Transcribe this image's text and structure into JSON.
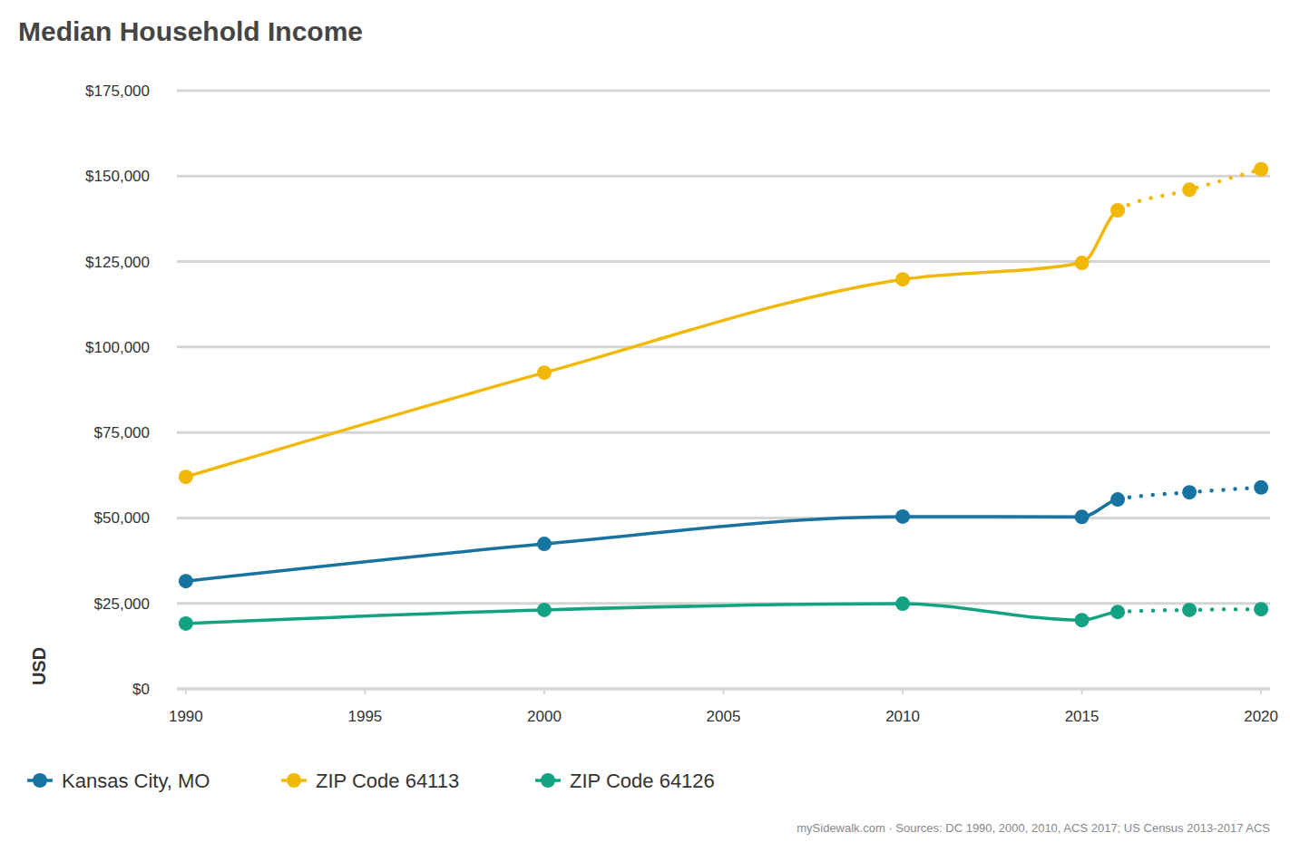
{
  "chart_data": {
    "type": "line",
    "title": "Median Household Income",
    "y_label": "USD",
    "source": "mySidewalk.com · Sources: DC 1990, 2000, 2010, ACS 2017; US Census 2013-2017 ACS",
    "x": [
      1990,
      2000,
      2010,
      2015,
      2016,
      2018,
      2020
    ],
    "xlim": [
      1989.75,
      2020.25
    ],
    "xticks": [
      1990,
      1995,
      2000,
      2005,
      2010,
      2015,
      2020
    ],
    "ylim": [
      0,
      175000
    ],
    "yticks": [
      {
        "value": 0,
        "label": "$0"
      },
      {
        "value": 25000,
        "label": "$25,000"
      },
      {
        "value": 50000,
        "label": "$50,000"
      },
      {
        "value": 75000,
        "label": "$75,000"
      },
      {
        "value": 100000,
        "label": "$100,000"
      },
      {
        "value": 125000,
        "label": "$125,000"
      },
      {
        "value": 150000,
        "label": "$150,000"
      },
      {
        "value": 175000,
        "label": "$175,000"
      }
    ],
    "grid": true,
    "legend": "bottom",
    "marker": "circle",
    "series": [
      {
        "name": "Kansas City, MO",
        "color": "#17739f",
        "values": [
          31500,
          42400,
          50400,
          50300,
          55400,
          57500,
          58900
        ],
        "line_style": [
          "solid",
          "solid",
          "solid",
          "solid",
          "solid",
          "dotted",
          "dotted"
        ]
      },
      {
        "name": "ZIP Code 64113",
        "color": "#f2b807",
        "values": [
          62000,
          92500,
          119800,
          124600,
          140000,
          146000,
          152000
        ],
        "line_style": [
          "solid",
          "solid",
          "solid",
          "solid",
          "solid",
          "dotted",
          "dotted"
        ]
      },
      {
        "name": "ZIP Code 64126",
        "color": "#13a383",
        "values": [
          19100,
          23100,
          24900,
          20100,
          22500,
          23100,
          23300
        ],
        "line_style": [
          "solid",
          "solid",
          "solid",
          "solid",
          "solid",
          "dotted",
          "dotted"
        ]
      }
    ]
  }
}
